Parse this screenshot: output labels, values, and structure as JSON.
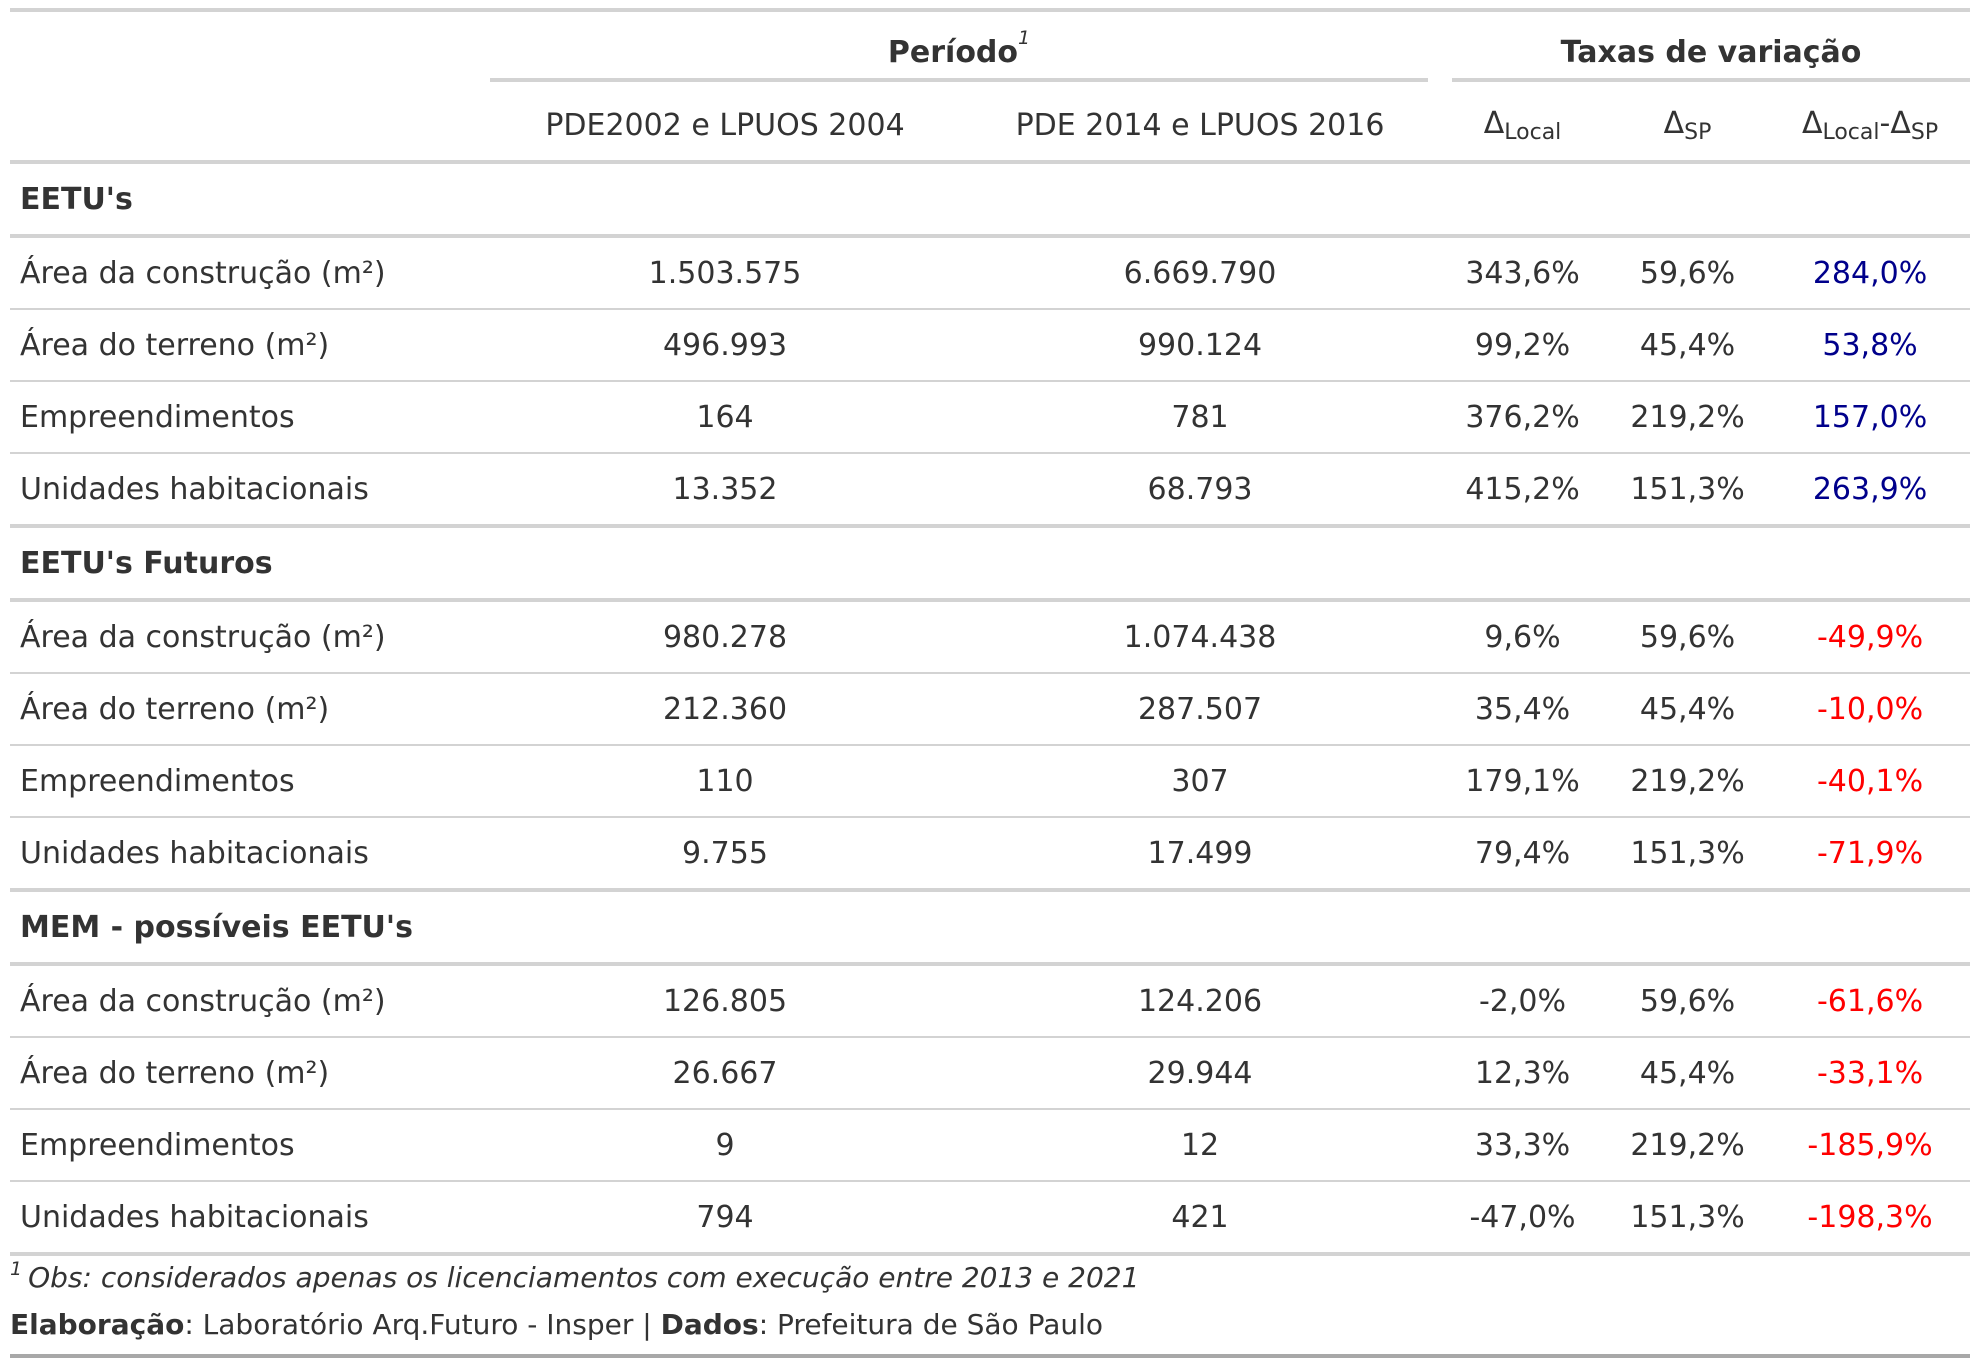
{
  "spanners": {
    "periodo": "Período",
    "periodo_footnote_mark": "1",
    "taxas": "Taxas de variação"
  },
  "columns": {
    "p1": "PDE2002 e LPUOS 2004",
    "p2": "PDE 2014 e LPUOS 2016",
    "delta": "Δ",
    "sub_local": "Local",
    "sub_sp": "SP",
    "dash": "-"
  },
  "groups": [
    {
      "title": "EETU's",
      "rows": [
        {
          "label": "Área da construção (m²)",
          "p1": "1.503.575",
          "p2": "6.669.790",
          "dlocal": "343,6%",
          "dsp": "59,6%",
          "diff": "284,0%"
        },
        {
          "label": "Área do terreno (m²)",
          "p1": "496.993",
          "p2": "990.124",
          "dlocal": "99,2%",
          "dsp": "45,4%",
          "diff": "53,8%"
        },
        {
          "label": "Empreendimentos",
          "p1": "164",
          "p2": "781",
          "dlocal": "376,2%",
          "dsp": "219,2%",
          "diff": "157,0%"
        },
        {
          "label": "Unidades habitacionais",
          "p1": "13.352",
          "p2": "68.793",
          "dlocal": "415,2%",
          "dsp": "151,3%",
          "diff": "263,9%"
        }
      ]
    },
    {
      "title": "EETU's Futuros",
      "rows": [
        {
          "label": "Área da construção (m²)",
          "p1": "980.278",
          "p2": "1.074.438",
          "dlocal": "9,6%",
          "dsp": "59,6%",
          "diff": "-49,9%"
        },
        {
          "label": "Área do terreno (m²)",
          "p1": "212.360",
          "p2": "287.507",
          "dlocal": "35,4%",
          "dsp": "45,4%",
          "diff": "-10,0%"
        },
        {
          "label": "Empreendimentos",
          "p1": "110",
          "p2": "307",
          "dlocal": "179,1%",
          "dsp": "219,2%",
          "diff": "-40,1%"
        },
        {
          "label": "Unidades habitacionais",
          "p1": "9.755",
          "p2": "17.499",
          "dlocal": "79,4%",
          "dsp": "151,3%",
          "diff": "-71,9%"
        }
      ]
    },
    {
      "title": "MEM - possíveis EETU's",
      "rows": [
        {
          "label": "Área da construção (m²)",
          "p1": "126.805",
          "p2": "124.206",
          "dlocal": "-2,0%",
          "dsp": "59,6%",
          "diff": "-61,6%"
        },
        {
          "label": "Área do terreno (m²)",
          "p1": "26.667",
          "p2": "29.944",
          "dlocal": "12,3%",
          "dsp": "45,4%",
          "diff": "-33,1%"
        },
        {
          "label": "Empreendimentos",
          "p1": "9",
          "p2": "12",
          "dlocal": "33,3%",
          "dsp": "219,2%",
          "diff": "-185,9%"
        },
        {
          "label": "Unidades habitacionais",
          "p1": "794",
          "p2": "421",
          "dlocal": "-47,0%",
          "dsp": "151,3%",
          "diff": "-198,3%"
        }
      ]
    }
  ],
  "colors": {
    "positive": "#00008b",
    "negative": "#ff0000",
    "text": "#333333",
    "rule": "#d3d3d3"
  },
  "footnote": {
    "mark": "1",
    "text": "Obs: considerados apenas os licenciamentos com execução entre 2013 e 2021"
  },
  "source": {
    "label1": "Elaboração",
    "value1": ": Laboratório Arq.Futuro - Insper | ",
    "label2": "Dados",
    "value2": ": Prefeitura de São Paulo"
  }
}
